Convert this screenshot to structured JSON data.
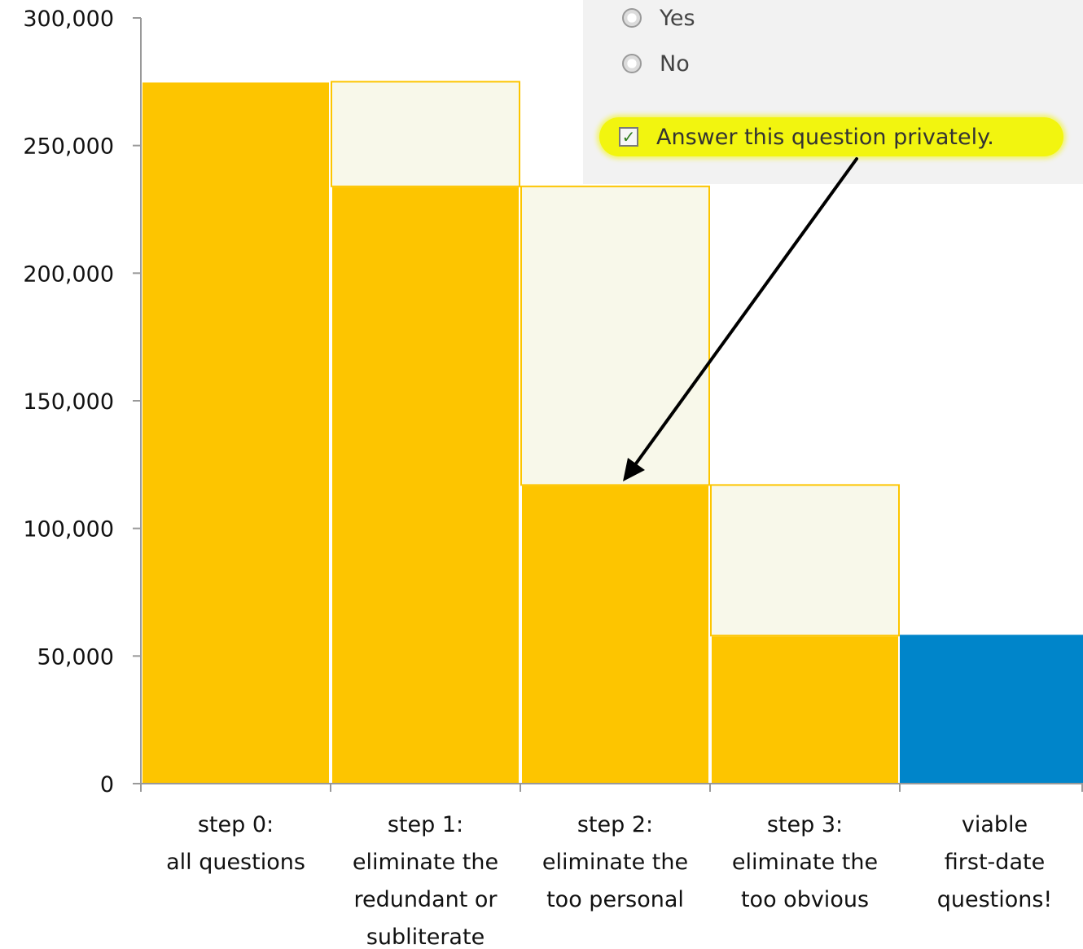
{
  "chart_data": {
    "type": "bar",
    "categories": [
      [
        "step 0:",
        "all questions"
      ],
      [
        "step 1:",
        "eliminate the",
        "redundant or",
        "subliterate"
      ],
      [
        "step 2:",
        "eliminate the",
        "too personal"
      ],
      [
        "step 3:",
        "eliminate the",
        "too obvious"
      ],
      [
        "viable",
        "first-date",
        "questions!"
      ]
    ],
    "series": [
      {
        "values": [
          275000,
          234000,
          117000,
          58000,
          58000
        ]
      },
      {
        "values": [
          0,
          41000,
          117000,
          59000,
          0
        ]
      }
    ],
    "ylim": [
      0,
      300000
    ],
    "yticks": [
      0,
      50000,
      100000,
      150000,
      200000,
      250000,
      300000
    ],
    "ytick_labels": [
      "0",
      "50,000",
      "100,000",
      "150,000",
      "200,000",
      "250,000",
      "300,000"
    ],
    "grid": false,
    "colors": {
      "remaining": "#FDC500",
      "eliminated": "#F8F8EA",
      "final": "#0085CA",
      "axis": "#999999"
    }
  },
  "overlay": {
    "yes_label": "Yes",
    "no_label": "No",
    "private_label": "Answer this question privately.",
    "check_glyph": "✓"
  }
}
